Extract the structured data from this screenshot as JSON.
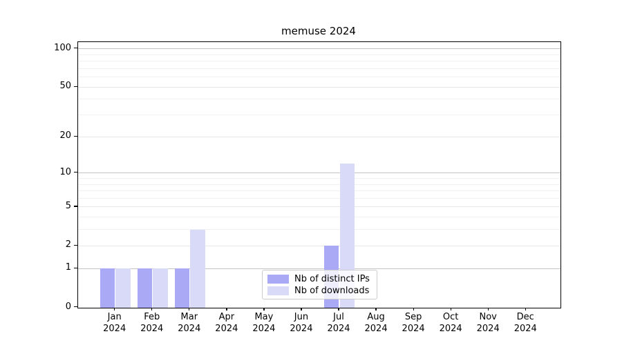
{
  "title": "memuse 2024",
  "colors": {
    "bar_distinct_ips": "#a9a9f6",
    "bar_downloads": "#d9d9f8",
    "grid_decade": "#c3c3c3",
    "grid_labeled": "#e7e7e7",
    "grid_minor": "#f1f1f1",
    "axis": "#000000",
    "legend_border": "#cccccc"
  },
  "chart_data": {
    "type": "bar",
    "title": "memuse 2024",
    "categories": [
      "Jan",
      "Feb",
      "Mar",
      "Apr",
      "May",
      "Jun",
      "Jul",
      "Aug",
      "Sep",
      "Oct",
      "Nov",
      "Dec"
    ],
    "category_year": "2024",
    "xtick_labels": [
      "Jan\n2024",
      "Feb\n2024",
      "Mar\n2024",
      "Apr\n2024",
      "May\n2024",
      "Jun\n2024",
      "Jul\n2024",
      "Aug\n2024",
      "Sep\n2024",
      "Oct\n2024",
      "Nov\n2024",
      "Dec\n2024"
    ],
    "series": [
      {
        "name": "Nb of distinct IPs",
        "color_key": "bar_distinct_ips",
        "values": [
          1,
          1,
          1,
          0,
          0,
          0,
          2,
          0,
          0,
          0,
          0,
          0
        ]
      },
      {
        "name": "Nb of downloads",
        "color_key": "bar_downloads",
        "values": [
          1,
          1,
          3,
          0,
          0,
          0,
          12,
          0,
          0,
          0,
          0,
          0
        ]
      }
    ],
    "yscale": "log10(1+v)",
    "ytick_values": [
      0,
      1,
      2,
      5,
      10,
      20,
      50,
      100
    ],
    "ytick_labels": [
      "0",
      "1",
      "2",
      "5",
      "10",
      "20",
      "50",
      "100"
    ],
    "decade_gridlines": [
      1,
      10,
      100
    ],
    "labeled_gridlines": [
      2,
      5,
      20,
      50
    ],
    "minor_gridlines": [
      3,
      4,
      6,
      7,
      8,
      9,
      30,
      40,
      60,
      70,
      80,
      90
    ],
    "ylim": [
      0,
      112
    ],
    "xlabel": "",
    "ylabel": "",
    "grid": "on",
    "legend_position": "lower center inside plot"
  }
}
